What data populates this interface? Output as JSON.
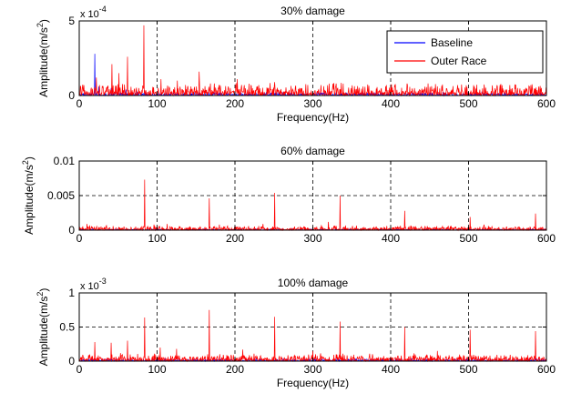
{
  "chart_data": [
    {
      "type": "line",
      "title": "30% damage",
      "xlabel": "Frequency(Hz)",
      "ylabel": "Amplitude(m/s",
      "ylabel_sup": "2",
      "ylabel_close": ")",
      "exponent_base": "x 10",
      "exponent_power": "-4",
      "xlim": [
        0,
        600
      ],
      "ylim": [
        0,
        5
      ],
      "xticks": [
        "0",
        "100",
        "200",
        "300",
        "400",
        "500",
        "600"
      ],
      "yticks": [
        "0",
        "5"
      ],
      "ytick_values": [
        0,
        5
      ],
      "grid": "dashed",
      "legend_position": "top-right",
      "series": [
        {
          "name": "Baseline",
          "color": "#0000ff",
          "noise_level": 0.25,
          "peaks": [
            [
              20,
              2.8
            ],
            [
              25,
              0.6
            ],
            [
              41,
              0.5
            ],
            [
              60,
              0.4
            ],
            [
              84,
              0.3
            ]
          ]
        },
        {
          "name": "Outer Race",
          "color": "#ff0000",
          "noise_level": 0.9,
          "peaks": [
            [
              22,
              1.2
            ],
            [
              42,
              2.1
            ],
            [
              51,
              1.5
            ],
            [
              62,
              2.6
            ],
            [
              83,
              4.7
            ],
            [
              105,
              1.1
            ],
            [
              126,
              1.0
            ],
            [
              154,
              1.6
            ],
            [
              203,
              1.1
            ],
            [
              251,
              0.9
            ],
            [
              321,
              0.8
            ],
            [
              339,
              0.8
            ],
            [
              421,
              0.8
            ],
            [
              486,
              0.7
            ],
            [
              553,
              0.7
            ],
            [
              590,
              0.6
            ]
          ]
        }
      ]
    },
    {
      "type": "line",
      "title": "60% damage",
      "xlabel": "",
      "ylabel": "Amplitude(m/s",
      "ylabel_sup": "2",
      "ylabel_close": ")",
      "xlim": [
        0,
        600
      ],
      "ylim": [
        0,
        0.01
      ],
      "xticks": [
        "0",
        "100",
        "200",
        "300",
        "400",
        "500",
        "600"
      ],
      "yticks": [
        "0",
        "0.005",
        "0.01"
      ],
      "ytick_values": [
        0,
        0.005,
        0.01
      ],
      "grid": "dashed",
      "series": [
        {
          "color": "#0000ff",
          "noise_level": 0.0002,
          "peaks": []
        },
        {
          "color": "#ff0000",
          "noise_level": 0.0007,
          "peaks": [
            [
              84,
              0.0073
            ],
            [
              167,
              0.0046
            ],
            [
              251,
              0.0054
            ],
            [
              335,
              0.005
            ],
            [
              418,
              0.0028
            ],
            [
              502,
              0.0019
            ],
            [
              586,
              0.0024
            ],
            [
              10,
              0.0009
            ],
            [
              96,
              0.0008
            ],
            [
              113,
              0.0009
            ],
            [
              180,
              0.0008
            ],
            [
              236,
              0.0009
            ],
            [
              320,
              0.0012
            ],
            [
              520,
              0.0008
            ]
          ]
        }
      ]
    },
    {
      "type": "line",
      "title": "100% damage",
      "xlabel": "Frequency(Hz)",
      "ylabel": "Amplitude(m/s",
      "ylabel_sup": "2",
      "ylabel_close": ")",
      "exponent_base": "x 10",
      "exponent_power": "-3",
      "xlim": [
        0,
        600
      ],
      "ylim": [
        0,
        1
      ],
      "xticks": [
        "0",
        "100",
        "200",
        "300",
        "400",
        "500",
        "600"
      ],
      "yticks": [
        "0",
        "0.5",
        "1"
      ],
      "ytick_values": [
        0,
        0.5,
        1
      ],
      "grid": "dashed",
      "series": [
        {
          "color": "#0000ff",
          "noise_level": 0.04,
          "peaks": []
        },
        {
          "color": "#ff0000",
          "noise_level": 0.12,
          "peaks": [
            [
              84,
              0.64
            ],
            [
              167,
              0.75
            ],
            [
              251,
              0.65
            ],
            [
              335,
              0.58
            ],
            [
              418,
              0.5
            ],
            [
              502,
              0.46
            ],
            [
              586,
              0.44
            ],
            [
              20,
              0.28
            ],
            [
              41,
              0.27
            ],
            [
              62,
              0.3
            ],
            [
              104,
              0.2
            ],
            [
              125,
              0.18
            ],
            [
              210,
              0.17
            ],
            [
              300,
              0.15
            ],
            [
              460,
              0.15
            ]
          ]
        }
      ]
    }
  ]
}
